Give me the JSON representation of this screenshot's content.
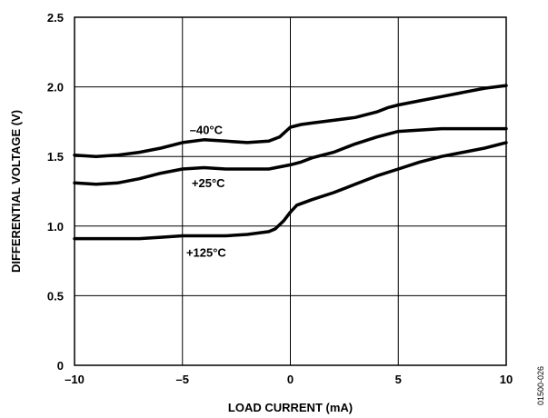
{
  "chart_data": {
    "type": "line",
    "title": "",
    "xlabel": "LOAD CURRENT (mA)",
    "ylabel": "DIFFERENTIAL VOLTAGE (V)",
    "xlim": [
      -10,
      10
    ],
    "ylim": [
      0,
      2.5
    ],
    "xticks": [
      -10,
      -5,
      0,
      5,
      10
    ],
    "xtick_labels": [
      "–10",
      "–5",
      "0",
      "5",
      "10"
    ],
    "yticks": [
      0,
      0.5,
      1.0,
      1.5,
      2.0,
      2.5
    ],
    "ytick_labels": [
      "0",
      "0.5",
      "1.0",
      "1.5",
      "2.0",
      "2.5"
    ],
    "grid": true,
    "legend": "none",
    "colors": {
      "series": "#000000",
      "grid": "#000000"
    },
    "series": [
      {
        "name": "–40°C",
        "x": [
          -10,
          -9,
          -8,
          -7,
          -6,
          -5,
          -4,
          -3,
          -2,
          -1,
          -0.5,
          0,
          0.5,
          1,
          2,
          3,
          4,
          4.5,
          5,
          6,
          7,
          8,
          9,
          10
        ],
        "y": [
          1.51,
          1.5,
          1.51,
          1.53,
          1.56,
          1.6,
          1.62,
          1.61,
          1.6,
          1.61,
          1.64,
          1.71,
          1.73,
          1.74,
          1.76,
          1.78,
          1.82,
          1.85,
          1.87,
          1.9,
          1.93,
          1.96,
          1.99,
          2.01
        ]
      },
      {
        "name": "+25°C",
        "x": [
          -10,
          -9,
          -8,
          -7,
          -6,
          -5,
          -4,
          -3,
          -2,
          -1,
          0,
          0.5,
          1,
          2,
          3,
          4,
          5,
          6,
          7,
          8,
          9,
          10
        ],
        "y": [
          1.31,
          1.3,
          1.31,
          1.34,
          1.38,
          1.41,
          1.42,
          1.41,
          1.41,
          1.41,
          1.44,
          1.46,
          1.49,
          1.53,
          1.59,
          1.64,
          1.68,
          1.69,
          1.7,
          1.7,
          1.7,
          1.7
        ]
      },
      {
        "name": "+125°C",
        "x": [
          -10,
          -9,
          -8,
          -7,
          -6,
          -5,
          -4,
          -3,
          -2,
          -1,
          -0.7,
          -0.3,
          0,
          0.3,
          1,
          2,
          3,
          4,
          5,
          6,
          7,
          8,
          9,
          10
        ],
        "y": [
          0.91,
          0.91,
          0.91,
          0.91,
          0.92,
          0.93,
          0.93,
          0.93,
          0.94,
          0.96,
          0.98,
          1.04,
          1.1,
          1.15,
          1.19,
          1.24,
          1.3,
          1.36,
          1.41,
          1.46,
          1.5,
          1.53,
          1.56,
          1.6
        ]
      }
    ],
    "annotations": [
      "–40°C",
      "+25°C",
      "+125°C"
    ]
  },
  "figure_id": "01500-026"
}
